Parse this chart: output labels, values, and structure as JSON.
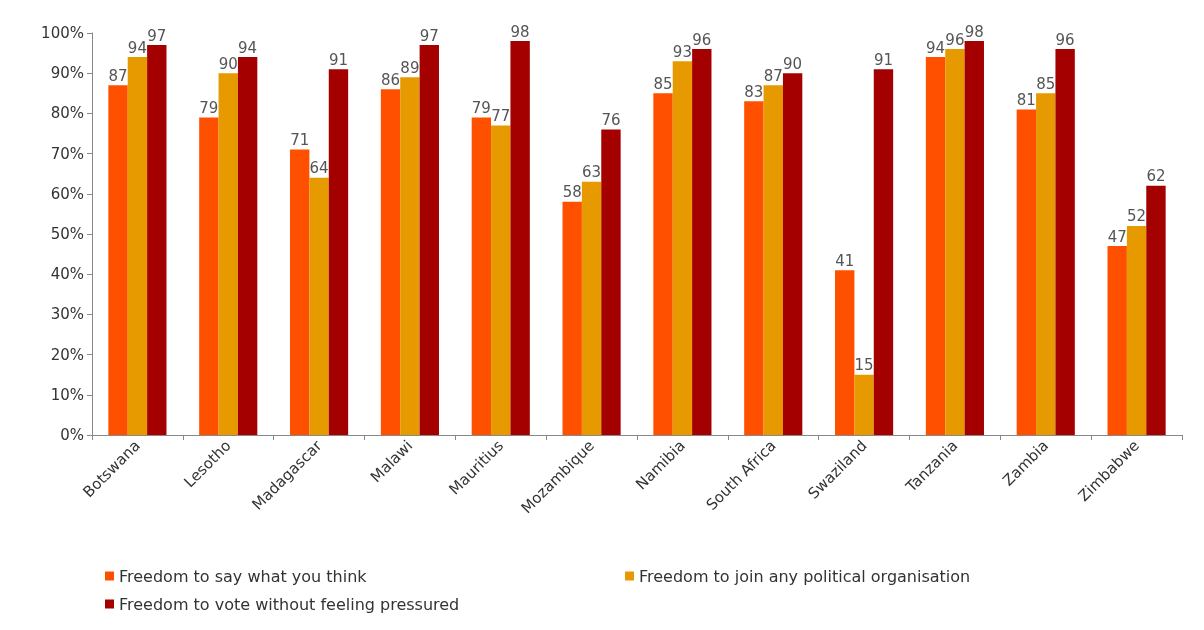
{
  "chart_data": {
    "type": "bar",
    "categories": [
      "Botswana",
      "Lesotho",
      "Madagascar",
      "Malawi",
      "Mauritius",
      "Mozambique",
      "Namibia",
      "South Africa",
      "Swaziland",
      "Tanzania",
      "Zambia",
      "Zimbabwe"
    ],
    "series": [
      {
        "name": "Freedom to say what you think",
        "color": "#ff5000",
        "values": [
          87,
          79,
          71,
          86,
          79,
          58,
          85,
          83,
          41,
          94,
          81,
          47
        ]
      },
      {
        "name": "Freedom to join any political organisation",
        "color": "#e69a00",
        "values": [
          94,
          90,
          64,
          89,
          77,
          63,
          93,
          87,
          15,
          96,
          85,
          52
        ]
      },
      {
        "name": "Freedom to vote without feeling pressured",
        "color": "#a50000",
        "values": [
          97,
          94,
          91,
          97,
          98,
          76,
          96,
          90,
          91,
          98,
          96,
          62
        ]
      }
    ],
    "ylim": [
      0,
      100
    ],
    "yticks": [
      {
        "value": 0,
        "label": "0%"
      },
      {
        "value": 10,
        "label": "10%"
      },
      {
        "value": 20,
        "label": "20%"
      },
      {
        "value": 30,
        "label": "30%"
      },
      {
        "value": 40,
        "label": "40%"
      },
      {
        "value": 50,
        "label": "50%"
      },
      {
        "value": 60,
        "label": "60%"
      },
      {
        "value": 70,
        "label": "70%"
      },
      {
        "value": 80,
        "label": "80%"
      },
      {
        "value": 90,
        "label": "90%"
      },
      {
        "value": 100,
        "label": "100%"
      }
    ],
    "data_labels": true,
    "grid": false,
    "legend": "bottom"
  }
}
